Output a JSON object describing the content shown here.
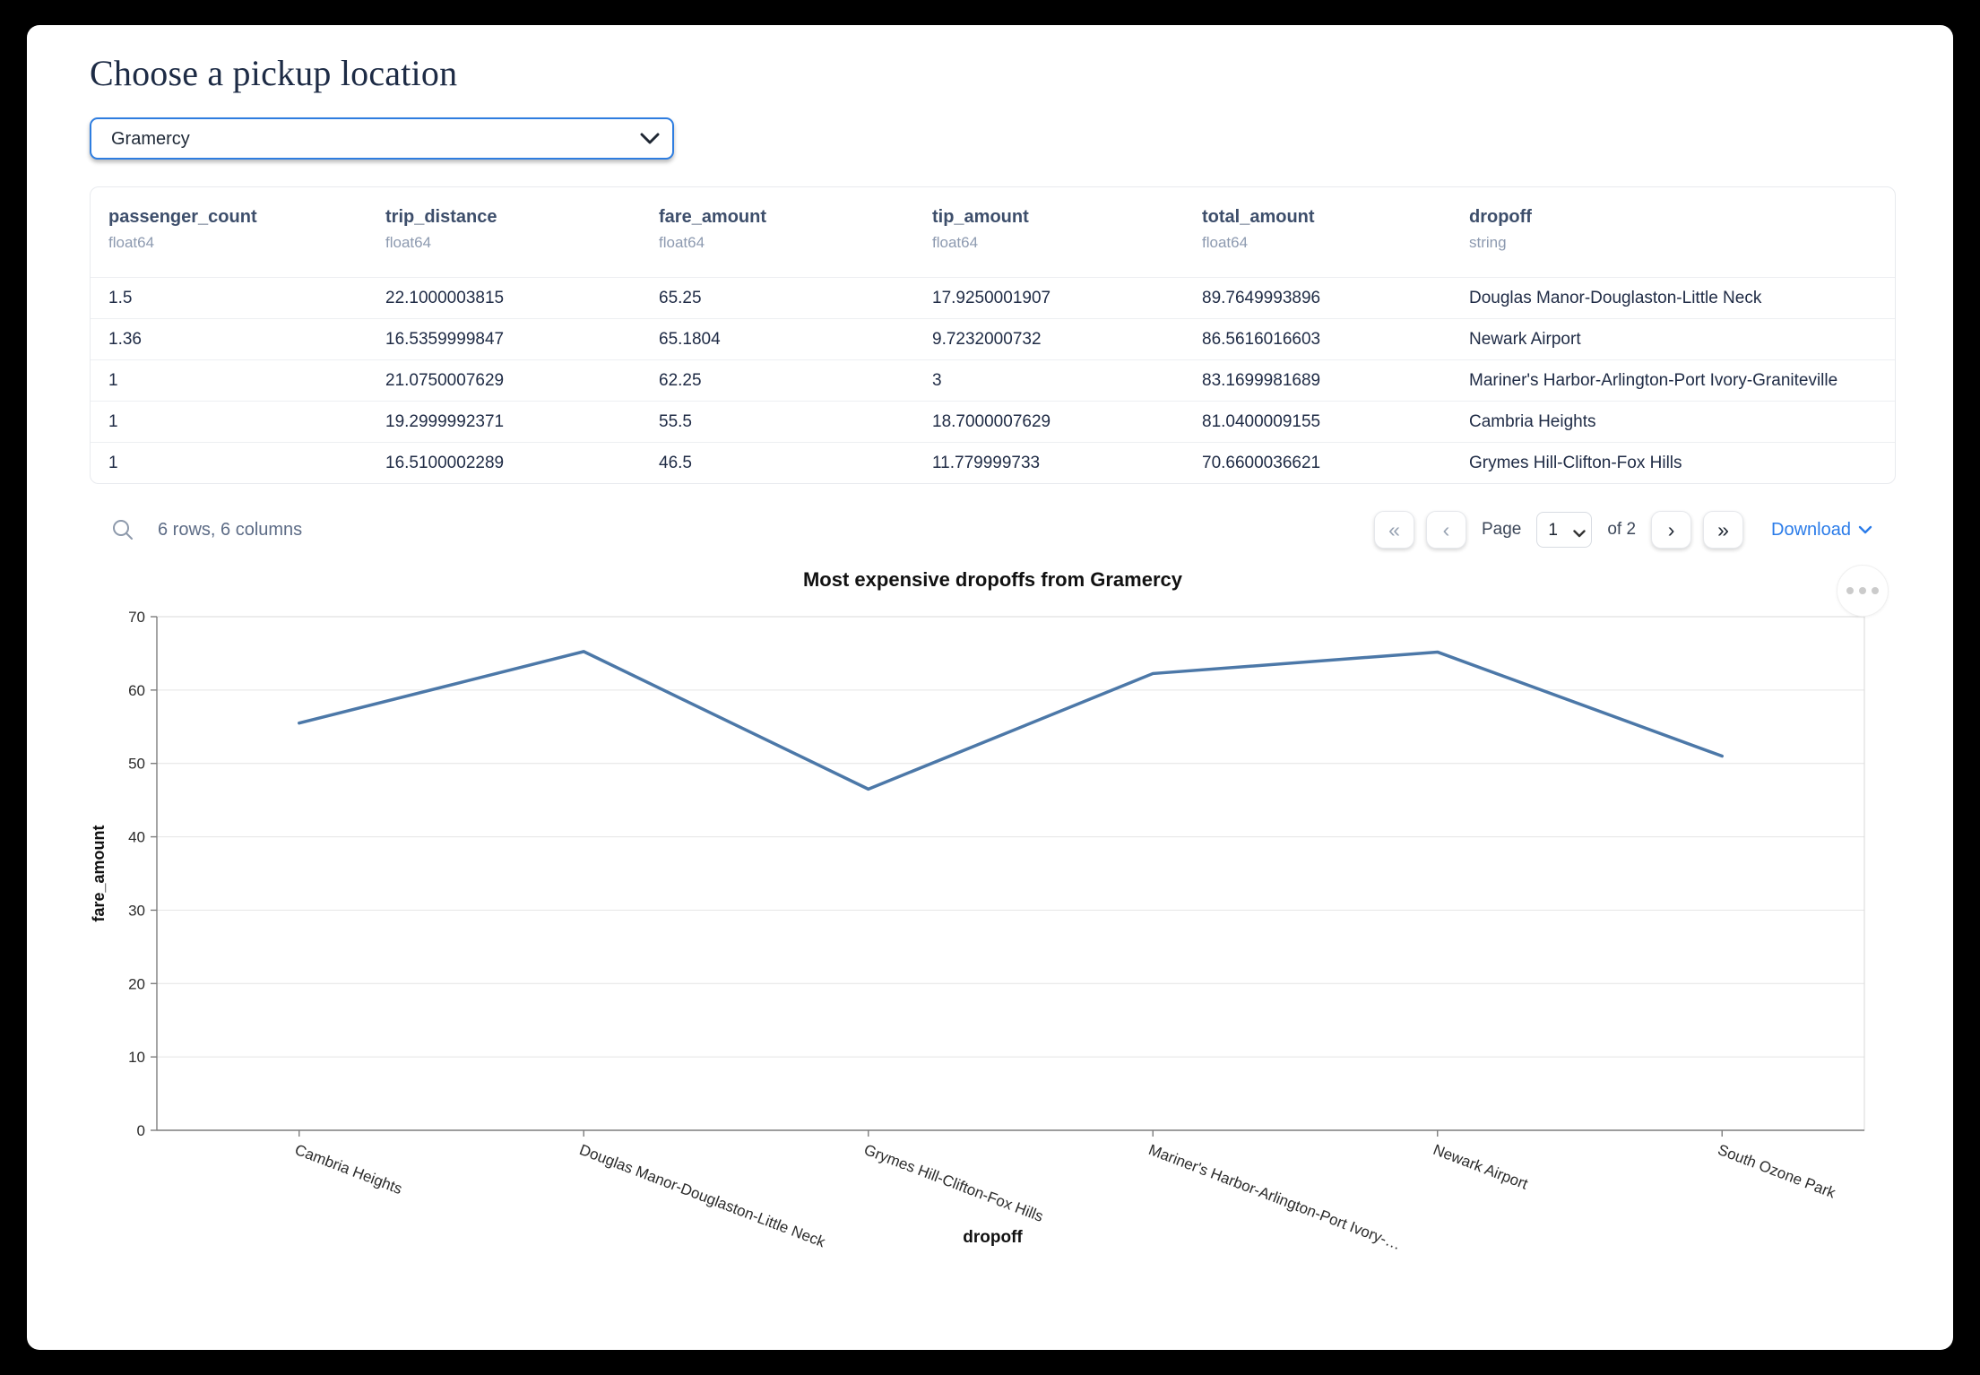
{
  "header": {
    "title": "Choose a pickup location"
  },
  "pickup_select": {
    "value": "Gramercy"
  },
  "table": {
    "columns": [
      {
        "name": "passenger_count",
        "type": "float64"
      },
      {
        "name": "trip_distance",
        "type": "float64"
      },
      {
        "name": "fare_amount",
        "type": "float64"
      },
      {
        "name": "tip_amount",
        "type": "float64"
      },
      {
        "name": "total_amount",
        "type": "float64"
      },
      {
        "name": "dropoff",
        "type": "string"
      }
    ],
    "rows": [
      [
        "1.5",
        "22.1000003815",
        "65.25",
        "17.9250001907",
        "89.7649993896",
        "Douglas Manor-Douglaston-Little Neck"
      ],
      [
        "1.36",
        "16.5359999847",
        "65.1804",
        "9.7232000732",
        "86.5616016603",
        "Newark Airport"
      ],
      [
        "1",
        "21.0750007629",
        "62.25",
        "3",
        "83.1699981689",
        "Mariner's Harbor-Arlington-Port Ivory-Graniteville"
      ],
      [
        "1",
        "19.2999992371",
        "55.5",
        "18.7000007629",
        "81.0400009155",
        "Cambria Heights"
      ],
      [
        "1",
        "16.5100002289",
        "46.5",
        "11.779999733",
        "70.6600036621",
        "Grymes Hill-Clifton-Fox Hills"
      ]
    ],
    "summary": "6 rows, 6 columns",
    "pagination": {
      "first_icon": "«",
      "prev_icon": "‹",
      "page_label": "Page",
      "current_page": "1",
      "of_label": "of 2",
      "next_icon": "›",
      "last_icon": "»"
    },
    "download_label": "Download"
  },
  "chart_data": {
    "type": "line",
    "title": "Most expensive dropoffs from Gramercy",
    "xlabel": "dropoff",
    "ylabel": "fare_amount",
    "categories": [
      "Cambria Heights",
      "Douglas Manor-Douglaston-Little Neck",
      "Grymes Hill-Clifton-Fox Hills",
      "Mariner's Harbor-Arlington-Port Ivory-…",
      "Newark Airport",
      "South Ozone Park"
    ],
    "values": [
      55.5,
      65.25,
      46.5,
      62.25,
      65.1804,
      51
    ],
    "ylim": [
      0,
      70
    ],
    "ytick_step": 10,
    "grid": true,
    "legend": "none",
    "line_color": "#4c78a8"
  },
  "colors": {
    "accent_blue": "#2b7ce9",
    "select_border": "#2e7de0",
    "line": "#4c78a8",
    "grid": "#e4e4e4",
    "axis": "#7d7d7d"
  }
}
